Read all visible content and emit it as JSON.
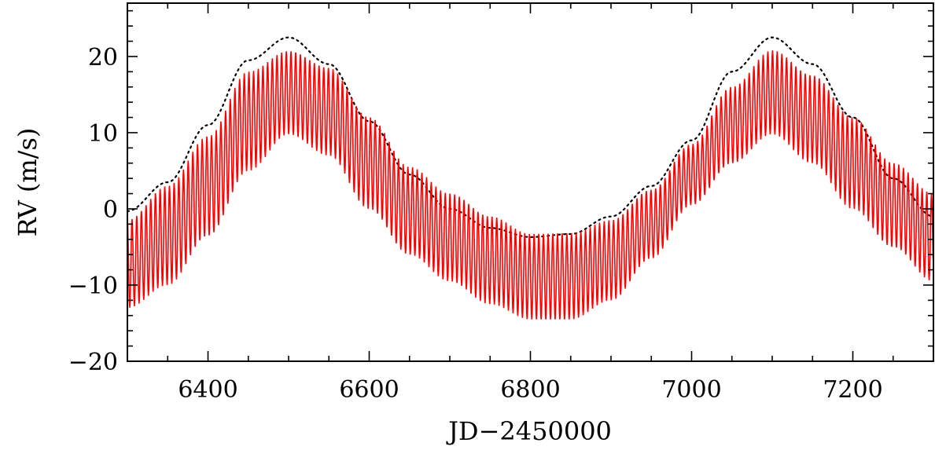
{
  "chart_data": {
    "type": "line",
    "title": "",
    "xlabel": "JD−2450000",
    "ylabel": "RV (m/s)",
    "xlim": [
      6300,
      7300
    ],
    "ylim": [
      -20,
      27
    ],
    "x_ticks": [
      6400,
      6600,
      6800,
      7000,
      7200
    ],
    "x_tick_labels": [
      "6400",
      "6600",
      "6800",
      "7000",
      "7200"
    ],
    "y_ticks": [
      -20,
      -10,
      0,
      10,
      20
    ],
    "y_tick_labels": [
      "−20",
      "−10",
      "0",
      "10",
      "20"
    ],
    "x_minor_step": 50,
    "y_minor_step": 2,
    "grid": false,
    "legend": "none",
    "series": [
      {
        "style": "dotted",
        "color": "#000000",
        "x": [
          6300,
          6350,
          6400,
          6450,
          6500,
          6550,
          6600,
          6650,
          6700,
          6750,
          6800,
          6850,
          6900,
          6950,
          7000,
          7050,
          7100,
          7150,
          7200,
          7250,
          7300
        ],
        "y": [
          -0.3,
          3.5,
          11,
          19.5,
          22.5,
          19,
          11.5,
          4.5,
          0,
          -2.5,
          -3.7,
          -3.3,
          -1,
          3,
          9,
          18,
          22.5,
          19,
          12,
          4,
          -1
        ]
      },
      {
        "style": "solid-oscillating",
        "color": "#ff0000",
        "oscillation_period_days": 5.8,
        "x": [
          6300,
          6350,
          6400,
          6450,
          6500,
          6550,
          6600,
          6650,
          6700,
          6750,
          6800,
          6850,
          6900,
          6950,
          7000,
          7050,
          7100,
          7150,
          7200,
          7250,
          7300
        ],
        "upper": [
          -1.5,
          3,
          9.5,
          18,
          20.7,
          18.5,
          12,
          5.5,
          2,
          -1,
          -3.3,
          -3.2,
          -1.5,
          2.5,
          8.5,
          16,
          20.8,
          17.5,
          12,
          6,
          2
        ],
        "lower": [
          -13,
          -10,
          -3.5,
          5,
          9.8,
          7,
          0,
          -6,
          -9.5,
          -12.5,
          -14.5,
          -14.5,
          -12,
          -6.5,
          0.5,
          6,
          9.8,
          6,
          0,
          -5,
          -9.5
        ]
      }
    ]
  }
}
